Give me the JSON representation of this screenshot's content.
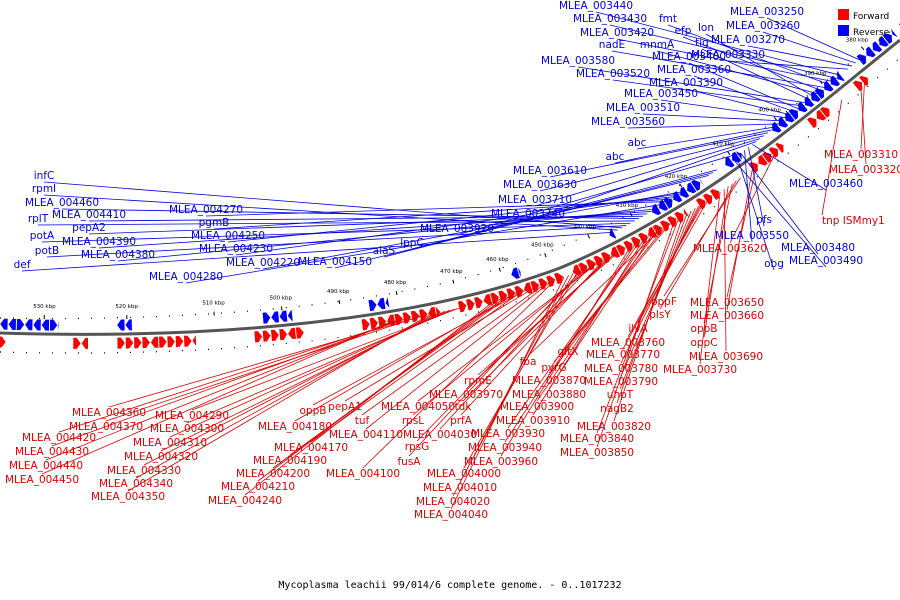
{
  "caption": "Mycoplasma leachii 99/014/6 complete genome. - 0..1017232",
  "legend": [
    {
      "label": "Forward",
      "color": "#ff0000"
    },
    {
      "label": "Reverse",
      "color": "#0000ff"
    }
  ],
  "colors": {
    "forward": "#ff0000",
    "reverse": "#0000ff",
    "forward_label": "#dd0000",
    "reverse_label": "#0000dd",
    "backbone": "#555555"
  },
  "ticks": [
    "380 kbp",
    "390 kbp",
    "400 kbp",
    "410 kbp",
    "420 kbp",
    "430 kbp",
    "440 kbp",
    "450 kbp",
    "460 kbp",
    "470 kbp",
    "480 kbp",
    "490 kbp",
    "500 kbp",
    "510 kbp",
    "520 kbp",
    "530 kbp"
  ],
  "forward_labels": [
    "MLEA_003310",
    "MLEA_003320",
    "tnp ISMmy1",
    "MLEA_003620",
    "MLEA_003650",
    "MLEA_003660",
    "oppF",
    "plsY",
    "oppB",
    "oppC",
    "MLEA_003690",
    "MLEA_003730",
    "ilvA",
    "MLEA_003760",
    "MLEA_003770",
    "MLEA_003780",
    "MLEA_003790",
    "gltX",
    "pyrG",
    "fba",
    "MLEA_003870",
    "MLEA_003880",
    "uhpT",
    "nagB2",
    "MLEA_003820",
    "MLEA_003840",
    "MLEA_003850",
    "MLEA_003900",
    "MLEA_003910",
    "MLEA_003930",
    "MLEA_003940",
    "MLEA_003960",
    "rpmE",
    "MLEA_003970",
    "tdk",
    "prfA",
    "MLEA_004050",
    "rpsL",
    "MLEA_004030",
    "rpsG",
    "fusA",
    "MLEA_004000",
    "MLEA_004010",
    "MLEA_004020",
    "MLEA_004040",
    "MLEA_004100",
    "MLEA_004110",
    "tuf",
    "pepA1",
    "oppB",
    "MLEA_004170",
    "MLEA_004180",
    "MLEA_004190",
    "MLEA_004200",
    "MLEA_004210",
    "MLEA_004240",
    "MLEA_004290",
    "MLEA_004300",
    "MLEA_004310",
    "MLEA_004320",
    "MLEA_004330",
    "MLEA_004340",
    "MLEA_004350",
    "MLEA_004360",
    "MLEA_004370",
    "MLEA_004420",
    "MLEA_004430",
    "MLEA_004440",
    "MLEA_004450"
  ],
  "reverse_labels": [
    "MLEA_003440",
    "MLEA_003430",
    "MLEA_003420",
    "fmt",
    "nadE",
    "efp",
    "mnmA",
    "lon",
    "tig",
    "MLEA_003250",
    "MLEA_003260",
    "MLEA_003270",
    "MLEA_003580",
    "MLEA_003520",
    "MLEA_003400",
    "MLEA_003330",
    "MLEA_003360",
    "MLEA_003390",
    "MLEA_003450",
    "MLEA_003510",
    "MLEA_003560",
    "abc",
    "abc",
    "MLEA_003610",
    "MLEA_003630",
    "MLEA_003710",
    "MLEA_003740",
    "MLEA_003920",
    "MLEA_003460",
    "pfs",
    "MLEA_003550",
    "MLEA_003480",
    "obg",
    "MLEA_003490",
    "lppC",
    "alaS",
    "MLEA_004150",
    "MLEA_004220",
    "MLEA_004230",
    "MLEA_004250",
    "pgmB",
    "MLEA_004270",
    "MLEA_004280",
    "MLEA_004380",
    "MLEA_004390",
    "pepA2",
    "MLEA_004410",
    "MLEA_004460",
    "rplT",
    "potA",
    "potB",
    "infC",
    "rpmI",
    "def"
  ]
}
